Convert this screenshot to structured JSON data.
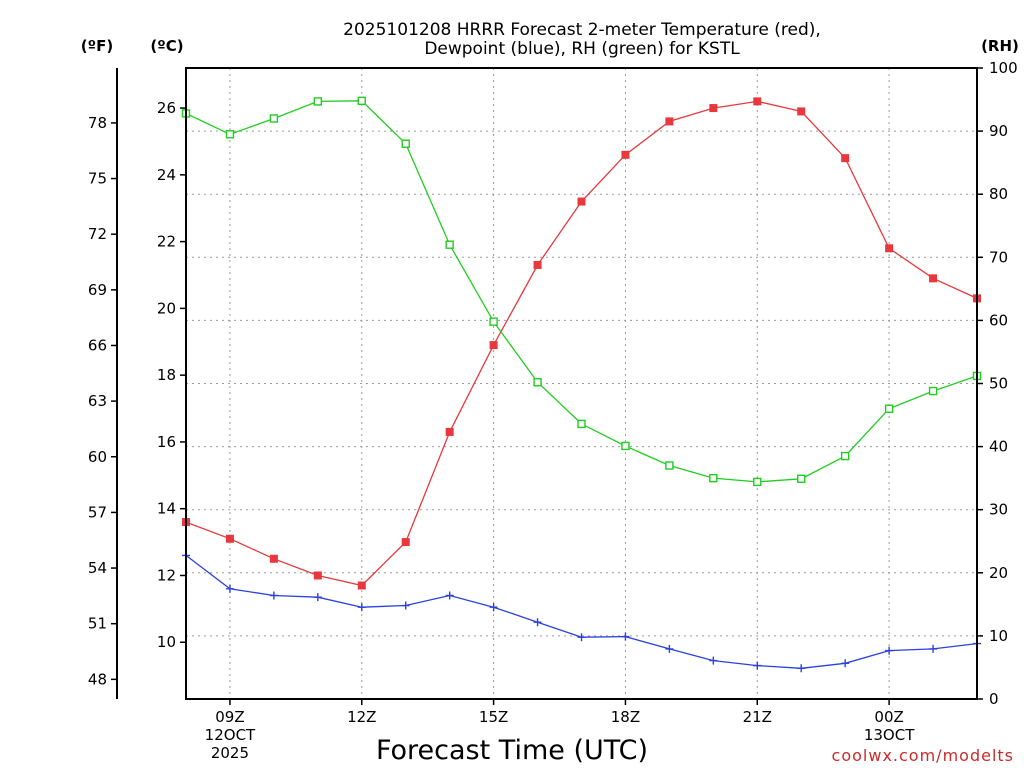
{
  "chart_data": {
    "type": "line",
    "title_lines": [
      "2025101208 HRRR Forecast 2-meter Temperature (red),",
      "Dewpoint (blue), RH (green) for KSTL"
    ],
    "xlabel": "Forecast Time (UTC)",
    "credit": "coolwx.com/modelts",
    "units": {
      "fahrenheit": "(ºF)",
      "celsius": "(ºC)",
      "rh": "(RH)"
    },
    "x_hours": [
      8,
      9,
      10,
      11,
      12,
      13,
      14,
      15,
      16,
      17,
      18,
      19,
      20,
      21,
      22,
      23,
      24,
      25,
      26
    ],
    "xlim": [
      8,
      26
    ],
    "x_ticks": [
      {
        "hour": 9,
        "label": "09Z",
        "date": "12OCT",
        "year": "2025"
      },
      {
        "hour": 12,
        "label": "12Z"
      },
      {
        "hour": 15,
        "label": "15Z"
      },
      {
        "hour": 18,
        "label": "18Z"
      },
      {
        "hour": 21,
        "label": "21Z"
      },
      {
        "hour": 24,
        "label": "00Z",
        "date": "13OCT"
      }
    ],
    "celsius_axis": {
      "range": [
        8.3,
        27.2
      ],
      "ticks": [
        "10",
        "12",
        "14",
        "16",
        "18",
        "20",
        "22",
        "24",
        "26"
      ]
    },
    "fahrenheit_axis": {
      "ticks": [
        "48",
        "51",
        "54",
        "57",
        "60",
        "63",
        "66",
        "69",
        "72",
        "75",
        "78"
      ]
    },
    "rh_axis": {
      "range": [
        0,
        100
      ],
      "ticks": [
        "0",
        "10",
        "20",
        "30",
        "40",
        "50",
        "60",
        "70",
        "80",
        "90",
        "100"
      ]
    },
    "series": [
      {
        "name": "2-meter Temperature",
        "axis": "celsius",
        "color": "#e8383d",
        "marker": "filled-square",
        "values": [
          13.6,
          13.1,
          12.5,
          12.0,
          11.7,
          13.0,
          16.3,
          18.9,
          21.3,
          23.2,
          24.6,
          25.6,
          26.0,
          26.2,
          25.9,
          24.5,
          21.8,
          20.9,
          20.3
        ]
      },
      {
        "name": "Dewpoint",
        "axis": "celsius",
        "color": "#2a40e0",
        "marker": "plus",
        "values": [
          12.6,
          11.6,
          11.4,
          11.35,
          11.05,
          11.1,
          11.4,
          11.05,
          10.6,
          10.15,
          10.17,
          9.8,
          9.45,
          9.3,
          9.22,
          9.37,
          9.75,
          9.8,
          9.96
        ]
      },
      {
        "name": "RH",
        "axis": "rh",
        "color": "#22cc22",
        "marker": "open-square",
        "values": [
          92.8,
          89.5,
          92.0,
          94.7,
          94.8,
          88.0,
          72.0,
          59.8,
          50.2,
          43.6,
          40.1,
          37.0,
          35.0,
          34.4,
          34.9,
          38.5,
          46.0,
          48.8,
          51.2
        ]
      }
    ]
  }
}
